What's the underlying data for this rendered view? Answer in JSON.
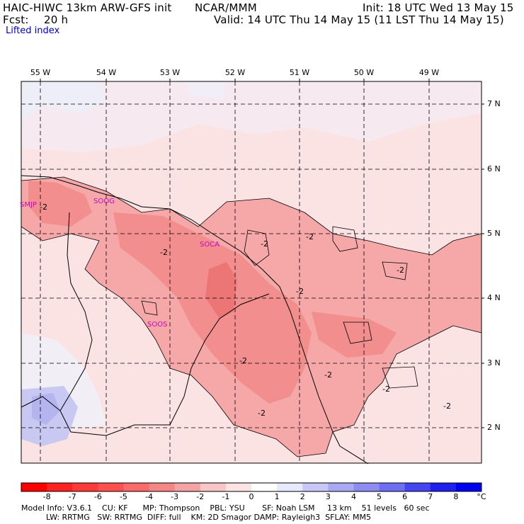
{
  "header": {
    "model": "HAIC-HIWC 13km ARW-GFS init",
    "org": "NCAR/MMM",
    "fcst_label": "Fcst:",
    "fcst_value": "20 h",
    "init": "Init: 18 UTC Wed 13 May 15",
    "valid": "Valid: 14 UTC Thu 14 May 15 (11 LST Thu 14 May 15)",
    "field": "Lifted index"
  },
  "map": {
    "lon_labels": [
      "55 W",
      "54 W",
      "53 W",
      "52 W",
      "51 W",
      "50 W",
      "49 W"
    ],
    "lat_labels": [
      "7 N",
      "6 N",
      "5 N",
      "4 N",
      "3 N",
      "2 N"
    ],
    "stations": [
      "SMJP",
      "SOCA",
      "SOOG",
      "SOOS"
    ],
    "contour_label": "-2"
  },
  "colorbar": {
    "ticks": [
      "-8",
      "-7",
      "-6",
      "-5",
      "-4",
      "-3",
      "-2",
      "-1",
      "0",
      "1",
      "2",
      "3",
      "4",
      "5",
      "6",
      "7",
      "8"
    ],
    "unit": "°C",
    "colors": [
      "#ff0000",
      "#ff2222",
      "#ff3a3a",
      "#ff5050",
      "#fb6b6b",
      "#f58686",
      "#f3a3a3",
      "#f8c6c6",
      "#fde3e3",
      "#ffffff",
      "#e8e8ff",
      "#c8c8f6",
      "#aaaaf4",
      "#8c8cf2",
      "#6e6ef2",
      "#4545ef",
      "#2020ee",
      "#0000f0"
    ]
  },
  "footer": {
    "line1": "Model Info: V3.6.1    CU: KF      MP: Thompson    PBL: YSU       SF: Noah LSM     13 km    51 levels   60 sec",
    "line2": "          LW: RRTMG   SW: RRTMG  DIFF: full    KM: 2D Smagor DAMP: Rayleigh3  SFLAY: MM5"
  }
}
